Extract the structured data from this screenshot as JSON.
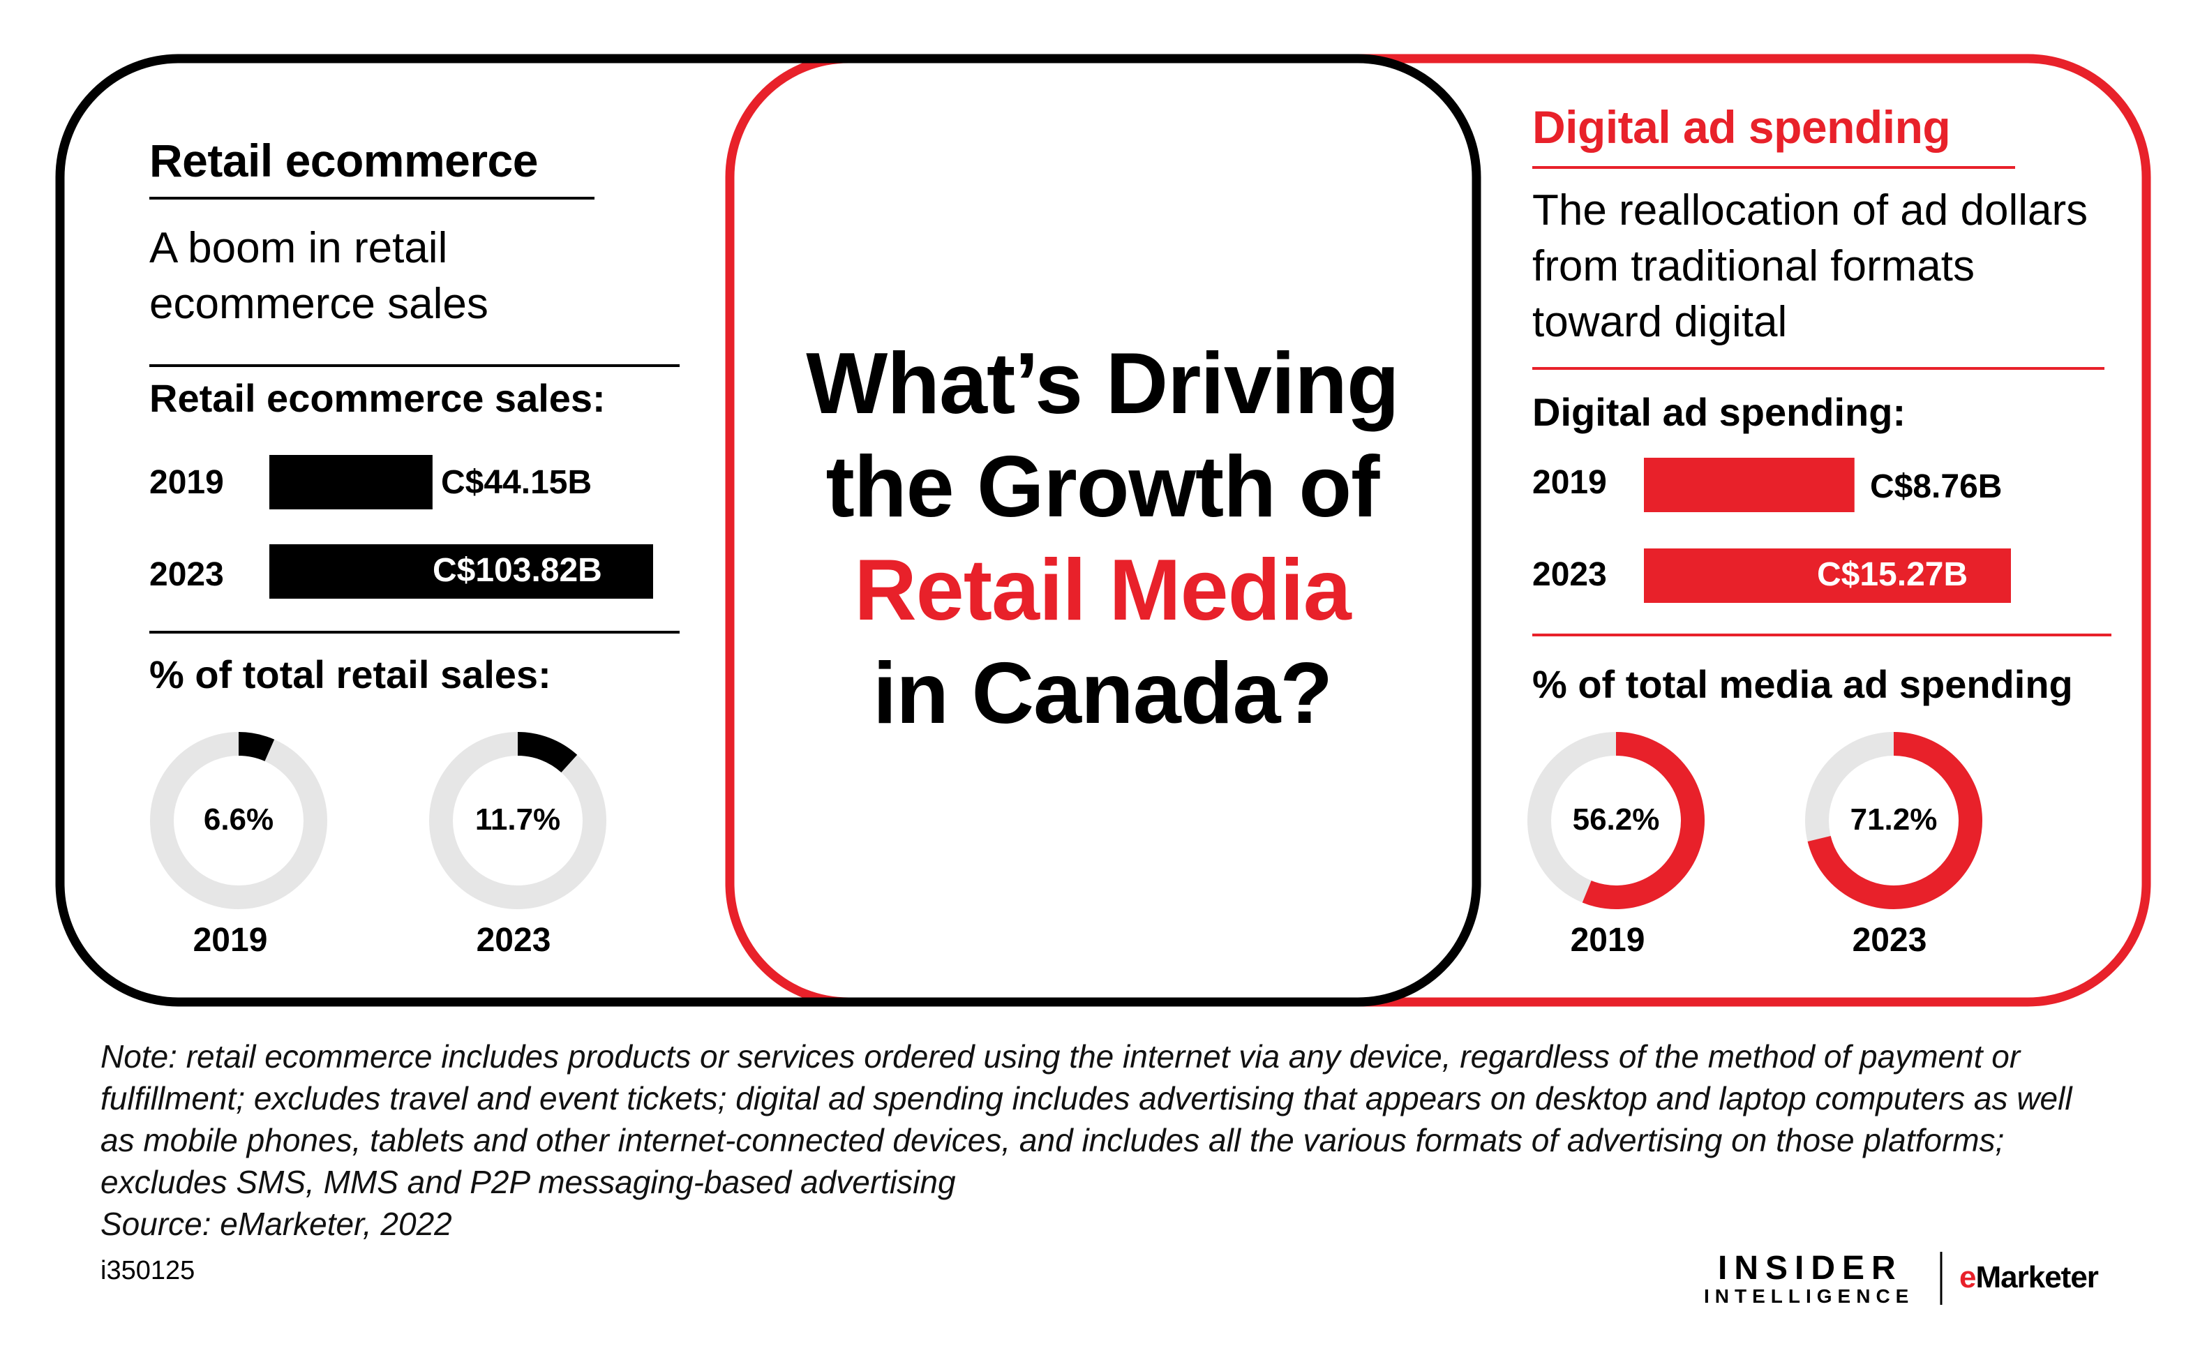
{
  "title": {
    "line1": "What’s Driving",
    "line2": "the Growth of",
    "line3": "Retail Media",
    "line4": "in Canada?"
  },
  "left": {
    "heading": "Retail ecommerce",
    "subtitle": "A boom in retail ecommerce sales",
    "sales_label": "Retail ecommerce sales:",
    "pct_label": "% of total retail sales:"
  },
  "right": {
    "heading": "Digital ad spending",
    "subtitle": "The reallocation of ad dollars from traditional formats toward digital",
    "sales_label": "Digital ad spending:",
    "pct_label": "% of total media ad spending"
  },
  "chart_data": [
    {
      "type": "bar",
      "orientation": "horizontal",
      "categories": [
        "2019",
        "2023"
      ],
      "values": [
        44.15,
        103.82
      ],
      "value_labels": [
        "C$44.15B",
        "C$103.82B"
      ],
      "color": "#000000"
    },
    {
      "type": "pie",
      "variant": "donut",
      "categories": [
        "2019",
        "2023"
      ],
      "values": [
        6.6,
        11.7
      ],
      "value_labels": [
        "6.6%",
        "11.7%"
      ],
      "color": "#000000",
      "track_color": "#e6e6e6"
    },
    {
      "type": "bar",
      "orientation": "horizontal",
      "categories": [
        "2019",
        "2023"
      ],
      "values": [
        8.76,
        15.27
      ],
      "value_labels": [
        "C$8.76B",
        "C$15.27B"
      ],
      "color": "#e8212a"
    },
    {
      "type": "pie",
      "variant": "donut",
      "categories": [
        "2019",
        "2023"
      ],
      "values": [
        56.2,
        71.2
      ],
      "value_labels": [
        "56.2%",
        "71.2%"
      ],
      "color": "#e8212a",
      "track_color": "#e6e6e6"
    }
  ],
  "footer": {
    "note": "Note: retail ecommerce includes products or services ordered using the internet via any device, regardless of the method of payment or fulfillment; excludes travel and event tickets; digital ad spending includes advertising that appears on desktop and laptop computers as well as mobile phones, tablets and other internet-connected devices, and includes all the various formats of advertising on those platforms; excludes SMS, MMS and P2P messaging-based advertising",
    "source": "Source: eMarketer, 2022",
    "id": "i350125",
    "logo_insider": "INSIDER",
    "logo_intelligence": "INTELLIGENCE",
    "logo_emarketer_e": "e",
    "logo_emarketer_rest": "Marketer"
  },
  "colors": {
    "black": "#000000",
    "red": "#e8212a",
    "track": "#e6e6e6"
  }
}
